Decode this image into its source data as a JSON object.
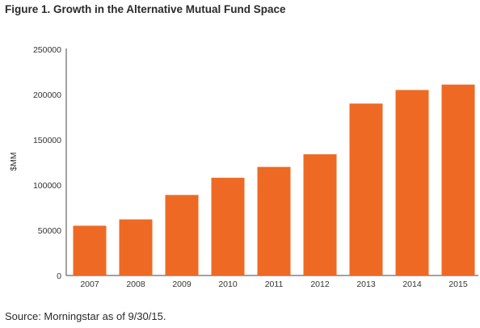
{
  "title": "Figure 1. Growth in the Alternative Mutual Fund Space",
  "source": "Source: Morningstar as of 9/30/15.",
  "chart_data": {
    "type": "bar",
    "title": "Figure 1. Growth in the Alternative Mutual Fund Space",
    "xlabel": "",
    "ylabel": "$MM",
    "categories": [
      "2007",
      "2008",
      "2009",
      "2010",
      "2011",
      "2012",
      "2013",
      "2014",
      "2015"
    ],
    "values": [
      55000,
      62000,
      89000,
      108000,
      120000,
      134000,
      190000,
      205000,
      211000
    ],
    "ylim": [
      0,
      250000
    ],
    "yticks": [
      "0",
      "50000",
      "100000",
      "150000",
      "200000",
      "250000"
    ],
    "grid": false,
    "legend": "none",
    "bar_color": "#ee6a24"
  }
}
